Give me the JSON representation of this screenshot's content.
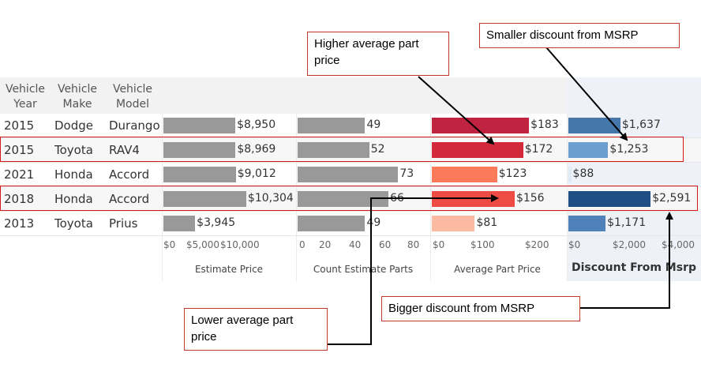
{
  "headers": {
    "year": [
      "Vehicle",
      "Year"
    ],
    "make": [
      "Vehicle",
      "Make"
    ],
    "model": [
      "Vehicle",
      "Model"
    ]
  },
  "rows": [
    {
      "year": "2015",
      "make": "Dodge",
      "model": "Durango"
    },
    {
      "year": "2015",
      "make": "Toyota",
      "model": "RAV4"
    },
    {
      "year": "2021",
      "make": "Honda",
      "model": "Accord"
    },
    {
      "year": "2018",
      "make": "Honda",
      "model": "Accord"
    },
    {
      "year": "2013",
      "make": "Toyota",
      "model": "Prius"
    }
  ],
  "chart_data": [
    {
      "type": "bar",
      "title": "",
      "xlabel": "Estimate Price",
      "values": [
        8950,
        8969,
        9012,
        10304,
        3945
      ],
      "labels": [
        "$8,950",
        "$8,969",
        "$9,012",
        "$10,304",
        "$3,945"
      ],
      "ticks": [
        "$0",
        "$5,000",
        "$10,000"
      ],
      "xlim": [
        0,
        11000
      ],
      "color": "#999999"
    },
    {
      "type": "bar",
      "title": "",
      "xlabel": "Count Estimate Parts",
      "values": [
        49,
        52,
        73,
        66,
        49
      ],
      "labels": [
        "49",
        "52",
        "73",
        "66",
        "49"
      ],
      "ticks": [
        "0",
        "20",
        "40",
        "60",
        "80"
      ],
      "xlim": [
        0,
        86
      ],
      "color": "#999999"
    },
    {
      "type": "bar",
      "title": "",
      "xlabel": "Average Part Price",
      "values": [
        183,
        172,
        123,
        156,
        81
      ],
      "labels": [
        "$183",
        "$172",
        "$123",
        "$156",
        "$81"
      ],
      "ticks": [
        "$0",
        "$100",
        "$200"
      ],
      "xlim": [
        0,
        220
      ],
      "colors": [
        "#c0233f",
        "#d22a3a",
        "#fb7a5a",
        "#ee4b45",
        "#fdbaa3"
      ]
    },
    {
      "type": "bar",
      "title": "",
      "xlabel": "Discount From Msrp",
      "values": [
        1637,
        1253,
        88,
        2591,
        1171
      ],
      "labels": [
        "$1,637",
        "$1,253",
        "$88",
        "$2,591",
        "$1,171"
      ],
      "ticks": [
        "$0",
        "$2,000",
        "$4,000"
      ],
      "xlim": [
        0,
        4100
      ],
      "colors": [
        "#4577ab",
        "#6c9fd0",
        "#deebf7",
        "#1f4e85",
        "#4f82ba"
      ]
    }
  ],
  "annotations": {
    "higher": "Higher average part price",
    "smaller": "Smaller discount from MSRP",
    "lower": "Lower average part price",
    "bigger": "Bigger discount from MSRP"
  }
}
